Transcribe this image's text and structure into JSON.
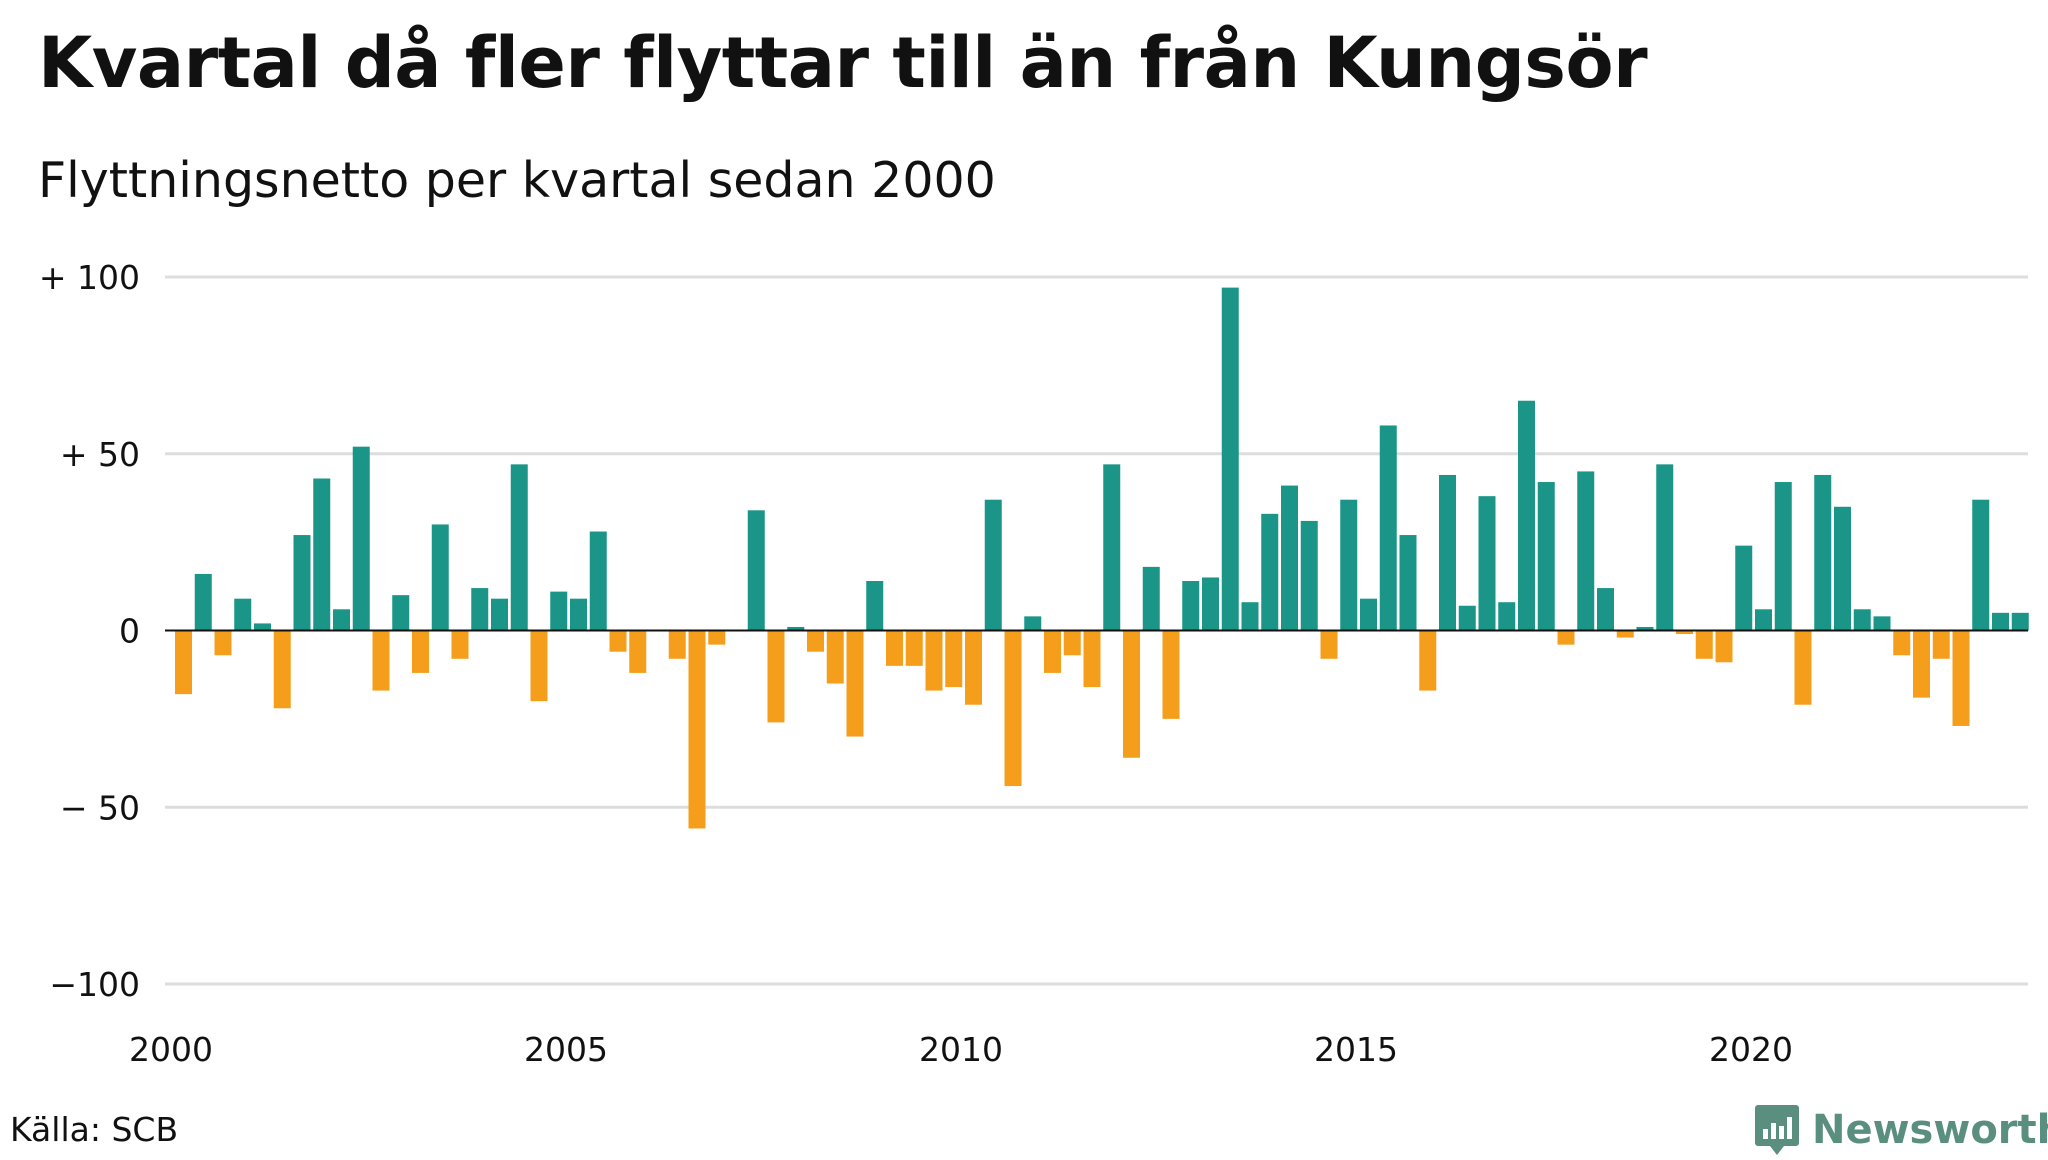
{
  "title": "Kvartal då fler flyttar till än från Kungsör",
  "subtitle": "Flyttningsnetto per kvartal sedan 2000",
  "source": "Källa: SCB",
  "brand": "Newsworthy",
  "colors": {
    "positive": "#1a9587",
    "negative": "#f59e1c",
    "grid": "#dddddd",
    "zero": "#111111",
    "brand": "#5a8f80"
  },
  "chart_data": {
    "type": "bar",
    "title": "Kvartal då fler flyttar till än från Kungsör",
    "subtitle": "Flyttningsnetto per kvartal sedan 2000",
    "xlabel": "",
    "ylabel": "",
    "ylim": [
      -100,
      100
    ],
    "y_ticks": [
      {
        "value": 100,
        "label": "+ 100"
      },
      {
        "value": 50,
        "label": "+  50"
      },
      {
        "value": 0,
        "label": "0"
      },
      {
        "value": -50,
        "label": "− 50"
      },
      {
        "value": -100,
        "label": "−100"
      }
    ],
    "x_ticks": [
      "2000",
      "2005",
      "2010",
      "2015",
      "2020"
    ],
    "x_start_year": 2000,
    "grid": true,
    "values": [
      -18,
      16,
      -7,
      9,
      2,
      -22,
      27,
      43,
      6,
      52,
      -17,
      10,
      -12,
      30,
      -8,
      12,
      9,
      47,
      -20,
      11,
      9,
      28,
      -6,
      -12,
      0,
      -8,
      -56,
      -4,
      0,
      34,
      -26,
      1,
      -6,
      -15,
      -30,
      14,
      -10,
      -10,
      -17,
      -16,
      -21,
      37,
      -44,
      4,
      -12,
      -7,
      -16,
      47,
      -36,
      18,
      -25,
      14,
      15,
      97,
      8,
      33,
      41,
      31,
      -8,
      37,
      9,
      58,
      27,
      -17,
      44,
      7,
      38,
      8,
      65,
      42,
      -4,
      45,
      12,
      -2,
      1,
      47,
      -1,
      -8,
      -9,
      24,
      6,
      42,
      -21,
      44,
      35,
      6,
      4,
      -7,
      -19,
      -8,
      -27,
      37,
      5,
      5
    ]
  }
}
